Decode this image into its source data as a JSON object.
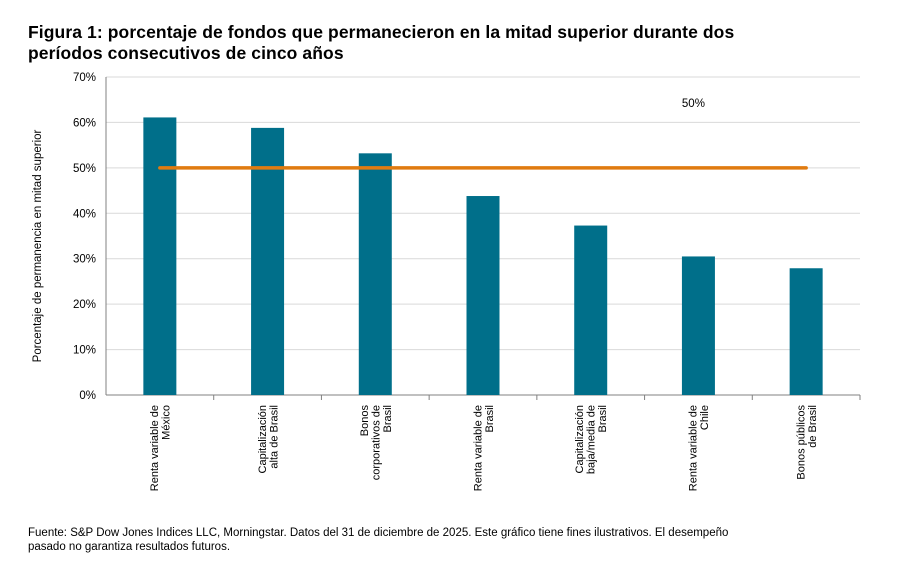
{
  "title_line1": "Figura 1: porcentaje de fondos que permanecieron en la mitad superior durante dos",
  "title_line2": "períodos consecutivos de cinco años",
  "footnote_line1": "Fuente: S&P Dow Jones Indices LLC, Morningstar. Datos del 31 de diciembre de 2025. Este gráfico tiene fines ilustrativos. El desempeño",
  "footnote_line2": "pasado no garantiza resultados futuros.",
  "colors": {
    "bar": "#006f8a",
    "reference_line": "#e07b10",
    "grid": "#d9d9d9",
    "axis": "#808080"
  },
  "chart_data": {
    "type": "bar",
    "title": "Figura 1: porcentaje de fondos que permanecieron en la mitad superior durante dos períodos consecutivos de cinco años",
    "ylabel": "Porcentaje de permanencia en mitad superior",
    "xlabel": "",
    "ylim": [
      0,
      70
    ],
    "yticks": [
      "0%",
      "10%",
      "20%",
      "30%",
      "40%",
      "50%",
      "60%",
      "70%"
    ],
    "grid": true,
    "legend": "none",
    "categories": [
      [
        "Renta variable de",
        "México"
      ],
      [
        "Capitalización",
        "alta de Brasil"
      ],
      [
        "Bonos",
        "corporativos de",
        "Brasil"
      ],
      [
        "Renta variable de",
        "Brasil"
      ],
      [
        "Capitalización",
        "baja/media de",
        "Brasil"
      ],
      [
        "Renta variable de",
        "Chile"
      ],
      [
        "Bonos públicos",
        "de Brasil"
      ]
    ],
    "values": [
      61.1,
      58.8,
      53.2,
      43.8,
      37.3,
      30.5,
      27.9
    ],
    "reference_line": {
      "value": 50,
      "label": "50%"
    }
  }
}
